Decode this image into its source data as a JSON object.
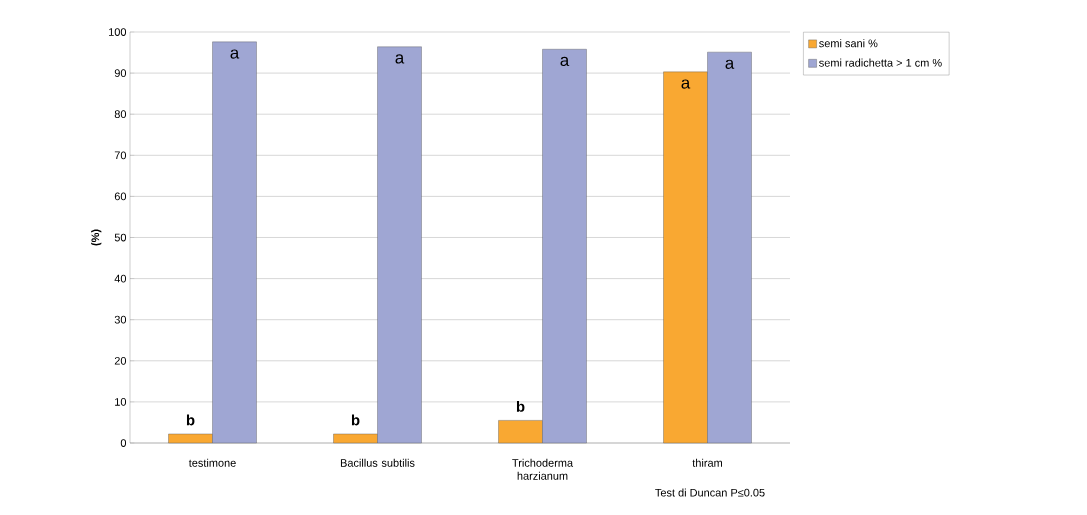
{
  "chart_data": {
    "type": "bar",
    "ylabel": "(%)",
    "categories": [
      "testimone",
      "Bacillus subtilis",
      "Trichoderma harzianum",
      "thiram"
    ],
    "series": [
      {
        "name": "semi sani %",
        "color": "#f9a832",
        "values": [
          2.2,
          2.2,
          5.5,
          90.3
        ],
        "value_labels": [
          "b",
          "b",
          "b",
          "a"
        ]
      },
      {
        "name": "semi radichetta > 1 cm %",
        "color": "#9fa6d3",
        "values": [
          97.6,
          96.4,
          95.8,
          95.1
        ],
        "value_labels": [
          "a",
          "a",
          "a",
          "a"
        ]
      }
    ],
    "ylim": [
      0,
      100
    ],
    "yticks": [
      0,
      10,
      20,
      30,
      40,
      50,
      60,
      70,
      80,
      90,
      100
    ],
    "grid": "y",
    "legend": "top right",
    "annotations": [
      "Test di Duncan P≤0.05"
    ]
  }
}
